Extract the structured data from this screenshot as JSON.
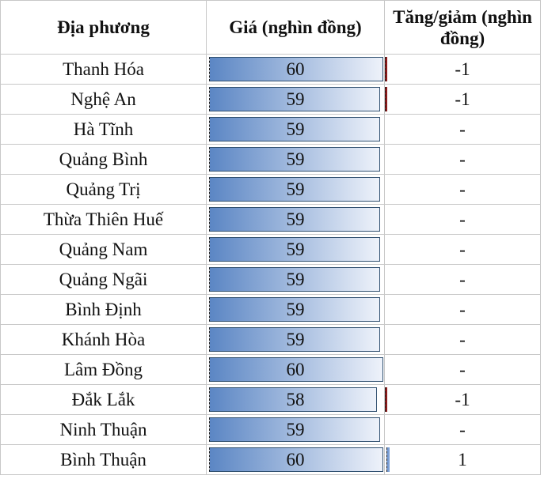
{
  "headers": {
    "province": "Địa phương",
    "price": "Giá (nghìn đồng)",
    "change": "Tăng/giảm (nghìn đồng)"
  },
  "colors": {
    "bar_start": "#5b86c4",
    "bar_end": "#eef2fa",
    "negative": "#8b1a1a",
    "positive": "#7a9fd6"
  },
  "rows": [
    {
      "province": "Thanh Hóa",
      "price": "60",
      "change": "-1"
    },
    {
      "province": "Nghệ An",
      "price": "59",
      "change": "-1"
    },
    {
      "province": "Hà Tĩnh",
      "price": "59",
      "change": "-"
    },
    {
      "province": "Quảng Bình",
      "price": "59",
      "change": "-"
    },
    {
      "province": "Quảng Trị",
      "price": "59",
      "change": "-"
    },
    {
      "province": "Thừa Thiên Huế",
      "price": "59",
      "change": "-"
    },
    {
      "province": "Quảng Nam",
      "price": "59",
      "change": "-"
    },
    {
      "province": "Quảng Ngãi",
      "price": "59",
      "change": "-"
    },
    {
      "province": "Bình Định",
      "price": "59",
      "change": "-"
    },
    {
      "province": "Khánh Hòa",
      "price": "59",
      "change": "-"
    },
    {
      "province": "Lâm Đồng",
      "price": "60",
      "change": "-"
    },
    {
      "province": "Đắk Lắk",
      "price": "58",
      "change": "-1"
    },
    {
      "province": "Ninh Thuận",
      "price": "59",
      "change": "-"
    },
    {
      "province": "Bình Thuận",
      "price": "60",
      "change": "1"
    }
  ]
}
